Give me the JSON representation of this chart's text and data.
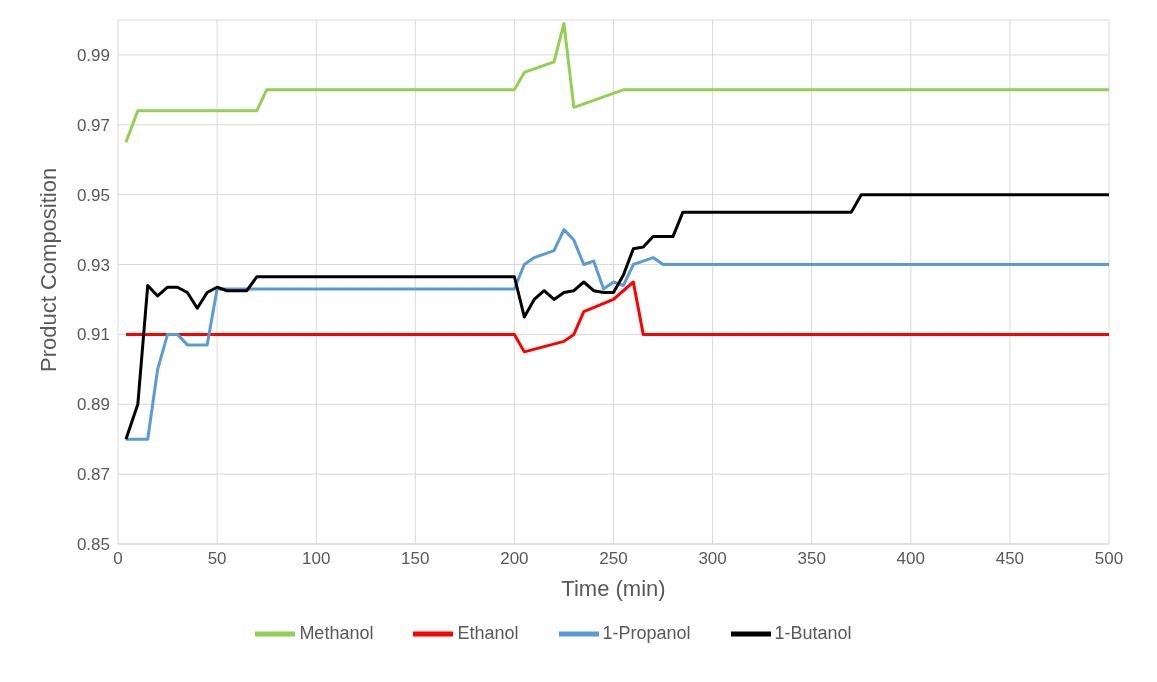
{
  "chart_data": {
    "type": "line",
    "xlabel": "Time (min)",
    "ylabel": "Product Composition",
    "xlim": [
      0,
      500
    ],
    "xticks": [
      0,
      50,
      100,
      150,
      200,
      250,
      300,
      350,
      400,
      450,
      500
    ],
    "ylim": [
      0.85,
      1.0
    ],
    "yticks": [
      0.85,
      0.87,
      0.89,
      0.91,
      0.93,
      0.95,
      0.97,
      0.99
    ],
    "grid": true,
    "legend": "bottom",
    "marker": "none",
    "series": [
      {
        "name": "Methanol",
        "color": "#92d050",
        "x": [
          4,
          10,
          70,
          75,
          200,
          205,
          210,
          215,
          220,
          225,
          230,
          240,
          250,
          255,
          500
        ],
        "values": [
          0.965,
          0.974,
          0.974,
          0.98,
          0.98,
          0.985,
          0.986,
          0.987,
          0.988,
          0.999,
          0.975,
          0.977,
          0.979,
          0.98,
          0.98
        ]
      },
      {
        "name": "Ethanol",
        "color": "#ff0000",
        "x": [
          4,
          200,
          205,
          225,
          230,
          235,
          250,
          260,
          265,
          500
        ],
        "values": [
          0.91,
          0.91,
          0.905,
          0.908,
          0.91,
          0.9165,
          0.92,
          0.925,
          0.91,
          0.91
        ]
      },
      {
        "name": "1-Propanol",
        "color": "#5b9bd5",
        "x": [
          4,
          15,
          20,
          25,
          30,
          35,
          45,
          50,
          200,
          205,
          210,
          215,
          220,
          225,
          230,
          235,
          240,
          245,
          250,
          255,
          260,
          265,
          270,
          275,
          500
        ],
        "values": [
          0.88,
          0.88,
          0.9,
          0.91,
          0.91,
          0.907,
          0.907,
          0.923,
          0.923,
          0.93,
          0.932,
          0.933,
          0.934,
          0.94,
          0.937,
          0.93,
          0.931,
          0.923,
          0.925,
          0.924,
          0.93,
          0.931,
          0.932,
          0.93,
          0.93
        ]
      },
      {
        "name": "1-Butanol",
        "color": "#000000",
        "x": [
          4,
          10,
          15,
          20,
          25,
          30,
          35,
          40,
          45,
          50,
          55,
          65,
          70,
          200,
          205,
          210,
          215,
          220,
          225,
          230,
          235,
          240,
          245,
          250,
          255,
          260,
          265,
          270,
          280,
          285,
          370,
          375,
          500
        ],
        "values": [
          0.88,
          0.89,
          0.924,
          0.921,
          0.9235,
          0.9235,
          0.922,
          0.9175,
          0.922,
          0.9235,
          0.9225,
          0.9225,
          0.9265,
          0.9265,
          0.915,
          0.92,
          0.9225,
          0.92,
          0.922,
          0.9225,
          0.925,
          0.9225,
          0.922,
          0.922,
          0.927,
          0.9345,
          0.935,
          0.938,
          0.938,
          0.945,
          0.945,
          0.95,
          0.95
        ]
      }
    ]
  }
}
